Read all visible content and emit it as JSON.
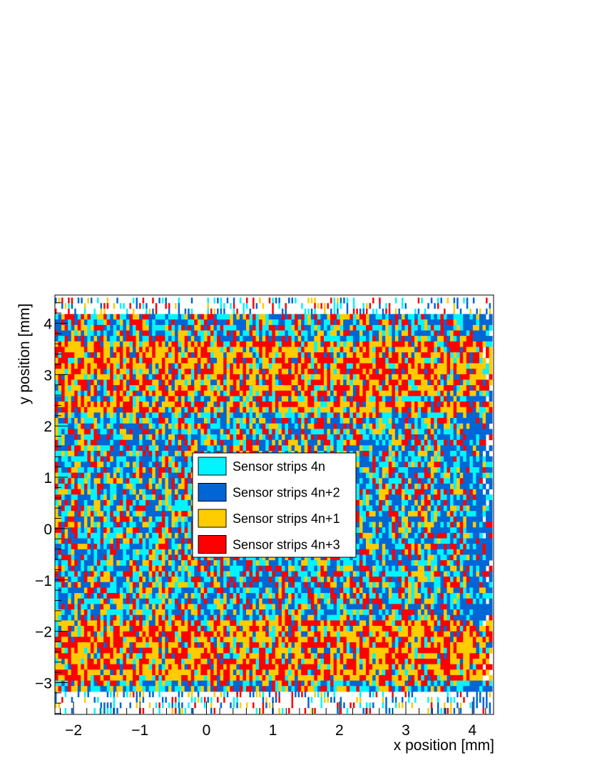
{
  "chart_data": {
    "type": "heatmap",
    "title": "",
    "xlabel": "x position [mm]",
    "ylabel": "y position [mm]",
    "xlim": [
      -2.28,
      4.32
    ],
    "ylim": [
      -3.62,
      4.55
    ],
    "x_ticks": [
      {
        "value": -2,
        "label": "−2"
      },
      {
        "value": -1,
        "label": "−1"
      },
      {
        "value": 0,
        "label": "0"
      },
      {
        "value": 1,
        "label": "1"
      },
      {
        "value": 2,
        "label": "2"
      },
      {
        "value": 3,
        "label": "3"
      },
      {
        "value": 4,
        "label": "4"
      }
    ],
    "y_ticks": [
      {
        "value": -3,
        "label": "−3"
      },
      {
        "value": -2,
        "label": "−2"
      },
      {
        "value": -1,
        "label": "−1"
      },
      {
        "value": 0,
        "label": "0"
      },
      {
        "value": 1,
        "label": "1"
      },
      {
        "value": 2,
        "label": "2"
      },
      {
        "value": 3,
        "label": "3"
      },
      {
        "value": 4,
        "label": "4"
      }
    ],
    "grid": false,
    "legend_position": "center",
    "series": [
      {
        "name": "Sensor strips 4n",
        "color": "#00f5ff"
      },
      {
        "name": "Sensor strips 4n+2",
        "color": "#0066d6"
      },
      {
        "name": "Sensor strips 4n+1",
        "color": "#ffcc00"
      },
      {
        "name": "Sensor strips 4n+3",
        "color": "#ff0000"
      }
    ],
    "data_region": {
      "x_range": [
        -2.28,
        4.3
      ],
      "y_range": [
        -3.6,
        4.5
      ]
    },
    "horizontal_bands": [
      {
        "y_range": [
          2.6,
          3.6
        ],
        "dominant": [
          "Sensor strips 4n+1",
          "Sensor strips 4n+3"
        ]
      },
      {
        "y_range": [
          2.3,
          2.5
        ],
        "dominant": [
          "Sensor strips 4n+1",
          "Sensor strips 4n+3"
        ]
      },
      {
        "y_range": [
          -3.0,
          -1.8
        ],
        "dominant": [
          "Sensor strips 4n+1",
          "Sensor strips 4n+3"
        ]
      }
    ]
  }
}
